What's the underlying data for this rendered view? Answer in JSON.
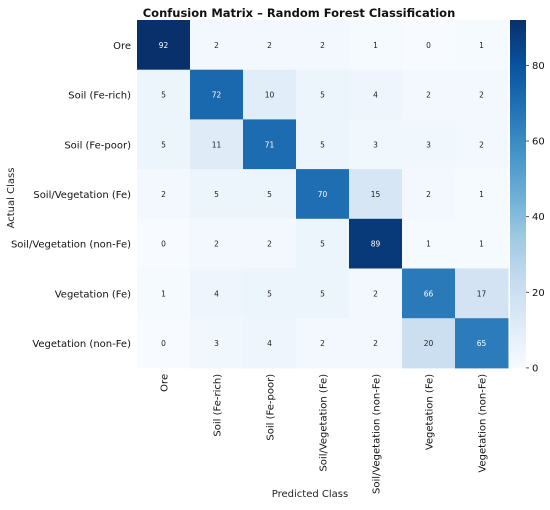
{
  "chart_data": {
    "type": "heatmap",
    "title": "Confusion Matrix – Random Forest Classification",
    "xlabel": "Predicted Class",
    "ylabel": "Actual Class",
    "rows": [
      "Ore",
      "Soil (Fe-rich)",
      "Soil (Fe-poor)",
      "Soil/Vegetation (Fe)",
      "Soil/Vegetation (non-Fe)",
      "Vegetation (Fe)",
      "Vegetation (non-Fe)"
    ],
    "columns": [
      "Ore",
      "Soil (Fe-rich)",
      "Soil (Fe-poor)",
      "Soil/Vegetation (Fe)",
      "Soil/Vegetation (non-Fe)",
      "Vegetation (Fe)",
      "Vegetation (non-Fe)"
    ],
    "values": [
      [
        92,
        2,
        2,
        2,
        1,
        0,
        1
      ],
      [
        5,
        72,
        10,
        5,
        4,
        2,
        2
      ],
      [
        5,
        11,
        71,
        5,
        3,
        3,
        2
      ],
      [
        2,
        5,
        5,
        70,
        15,
        2,
        1
      ],
      [
        0,
        2,
        2,
        5,
        89,
        1,
        1
      ],
      [
        1,
        4,
        5,
        5,
        2,
        66,
        17
      ],
      [
        0,
        3,
        4,
        2,
        2,
        20,
        65
      ]
    ],
    "colorbar": {
      "range": [
        0,
        92
      ],
      "ticks": [
        0,
        20,
        40,
        60,
        80
      ],
      "colormap": "Blues",
      "colors": [
        "#f7fbff",
        "#deebf7",
        "#c6dbef",
        "#9ecae1",
        "#6baed6",
        "#4292c6",
        "#2171b5",
        "#08519c",
        "#08306b"
      ]
    }
  }
}
